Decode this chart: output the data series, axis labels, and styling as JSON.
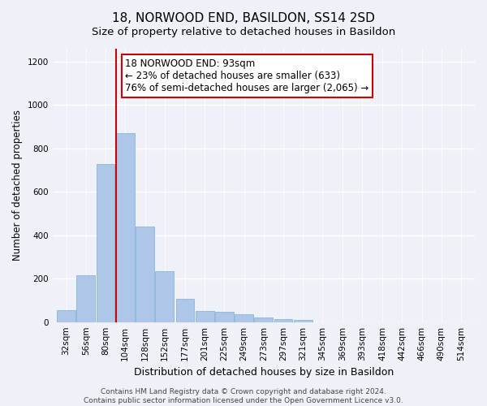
{
  "title": "18, NORWOOD END, BASILDON, SS14 2SD",
  "subtitle": "Size of property relative to detached houses in Basildon",
  "xlabel": "Distribution of detached houses by size in Basildon",
  "ylabel": "Number of detached properties",
  "bar_bins": [
    32,
    56,
    80,
    104,
    128,
    152,
    177,
    201,
    225,
    249,
    273,
    297,
    321,
    345,
    369,
    393,
    418,
    442,
    466,
    490,
    514
  ],
  "bar_heights": [
    55,
    215,
    730,
    870,
    440,
    235,
    107,
    50,
    47,
    35,
    20,
    15,
    10,
    0,
    0,
    0,
    0,
    0,
    0,
    0,
    0
  ],
  "bar_color": "#aec6e8",
  "bar_edgecolor": "#7aafd4",
  "vline_x": 93,
  "vline_color": "#cc0000",
  "ylim": [
    0,
    1260
  ],
  "annotation_text": "18 NORWOOD END: 93sqm\n← 23% of detached houses are smaller (633)\n76% of semi-detached houses are larger (2,065) →",
  "annotation_box_edgecolor": "#cc0000",
  "annotation_box_facecolor": "#ffffff",
  "footer_text": "Contains HM Land Registry data © Crown copyright and database right 2024.\nContains public sector information licensed under the Open Government Licence v3.0.",
  "title_fontsize": 11,
  "subtitle_fontsize": 9.5,
  "xlabel_fontsize": 9,
  "ylabel_fontsize": 8.5,
  "tick_fontsize": 7.5,
  "annotation_fontsize": 8.5,
  "footer_fontsize": 6.5,
  "background_color": "#eef2f8",
  "grid_color": "#ffffff",
  "bin_width": 24
}
